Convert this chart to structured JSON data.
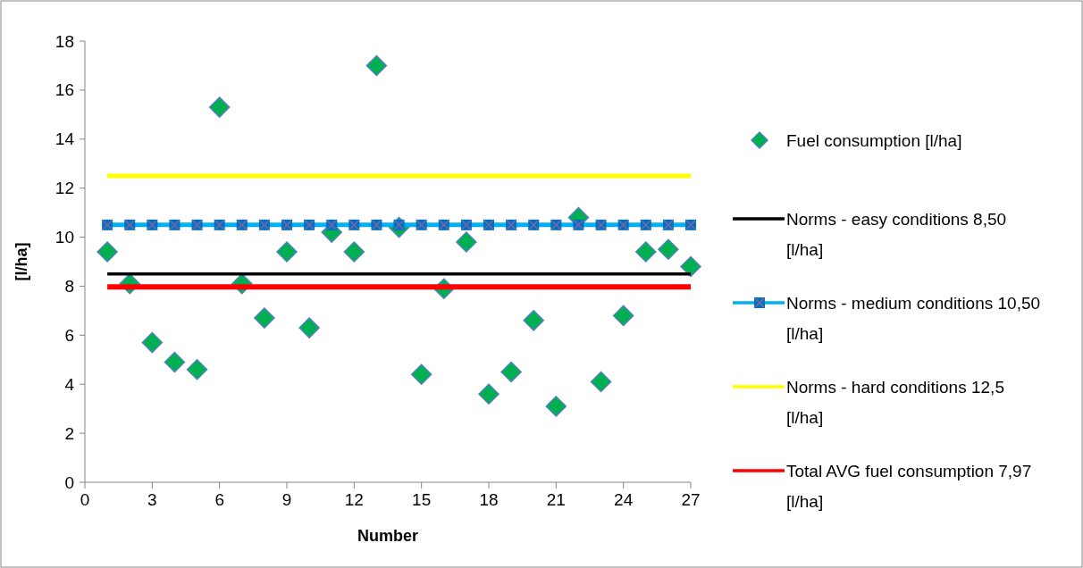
{
  "chart_data": {
    "type": "scatter",
    "xlabel": "Number",
    "ylabel": "[l/ha]",
    "xlim": [
      0,
      27
    ],
    "xticks": [
      0,
      3,
      6,
      9,
      12,
      15,
      18,
      21,
      24,
      27
    ],
    "ylim": [
      0,
      18
    ],
    "yticks": [
      0,
      2,
      4,
      6,
      8,
      10,
      12,
      14,
      16,
      18
    ],
    "grid": false,
    "legend": "right",
    "series": [
      {
        "name": "Fuel consumption  [l/ha]",
        "marker": "diamond",
        "color": "#00b050",
        "x": [
          1,
          2,
          3,
          4,
          5,
          6,
          7,
          8,
          9,
          10,
          11,
          12,
          13,
          14,
          15,
          16,
          17,
          18,
          19,
          20,
          21,
          22,
          23,
          24,
          25,
          26,
          27
        ],
        "values": [
          9.4,
          8.1,
          5.7,
          4.9,
          4.6,
          15.3,
          8.1,
          6.7,
          9.4,
          6.3,
          10.2,
          9.4,
          17.0,
          10.4,
          4.4,
          7.9,
          9.8,
          3.6,
          4.5,
          6.6,
          3.1,
          10.8,
          4.1,
          6.8,
          9.4,
          9.5,
          8.8
        ]
      },
      {
        "name": "Norms - easy conditions 8,50 [l/ha]",
        "type": "line",
        "marker": "none",
        "color": "#000000",
        "x": [
          1,
          27
        ],
        "values": [
          8.5,
          8.5
        ]
      },
      {
        "name": "Norms - medium conditions 10,50 [l/ha]",
        "type": "line",
        "marker": "square",
        "color": "#00b0f0",
        "x": [
          1,
          2,
          3,
          4,
          5,
          6,
          7,
          8,
          9,
          10,
          11,
          12,
          13,
          14,
          15,
          16,
          17,
          18,
          19,
          20,
          21,
          22,
          23,
          24,
          25,
          26,
          27
        ],
        "values": [
          10.5,
          10.5,
          10.5,
          10.5,
          10.5,
          10.5,
          10.5,
          10.5,
          10.5,
          10.5,
          10.5,
          10.5,
          10.5,
          10.5,
          10.5,
          10.5,
          10.5,
          10.5,
          10.5,
          10.5,
          10.5,
          10.5,
          10.5,
          10.5,
          10.5,
          10.5,
          10.5
        ]
      },
      {
        "name": "Norms - hard conditions 12,5 [l/ha]",
        "type": "line",
        "marker": "none",
        "color": "#ffff00",
        "x": [
          1,
          27
        ],
        "values": [
          12.5,
          12.5
        ]
      },
      {
        "name": "Total AVG fuel consumption 7,97 [l/ha]",
        "type": "line",
        "marker": "none",
        "color": "#ff0000",
        "x": [
          1,
          27
        ],
        "values": [
          7.97,
          7.97
        ]
      }
    ]
  }
}
